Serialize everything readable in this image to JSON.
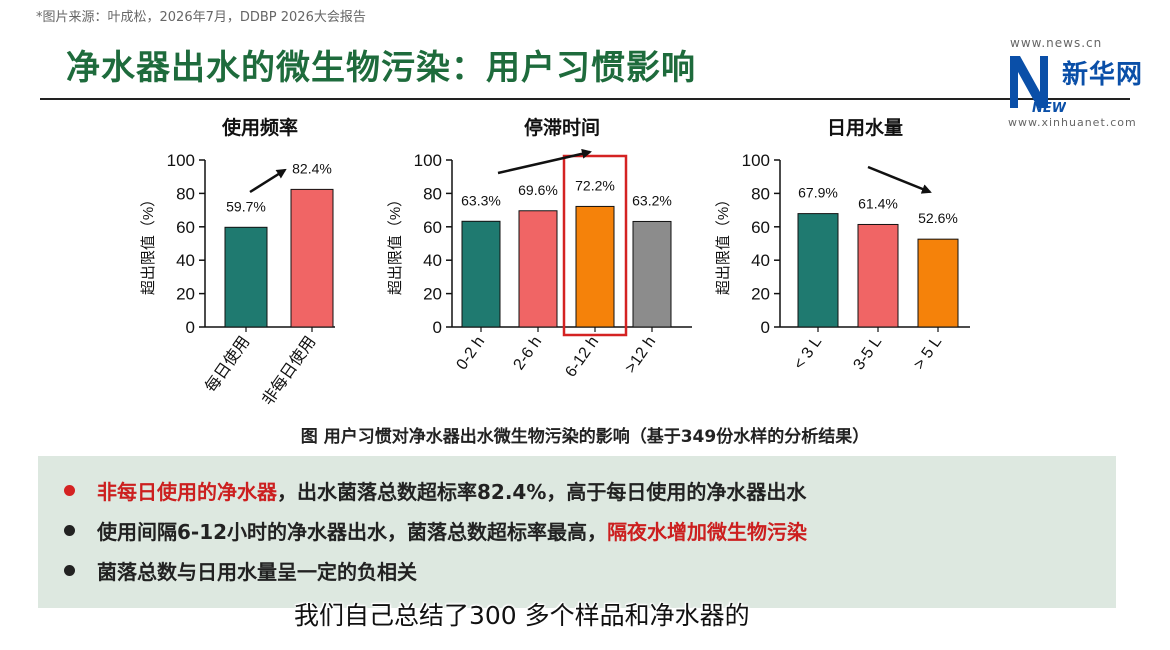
{
  "source": "*图片来源：叶成松，2026年7月，DDBP 2026大会报告",
  "title": "净水器出水的微生物污染：用户习惯影响",
  "logo": {
    "url_top": "www.news.cn",
    "name": "新华网",
    "letters": "NEWS",
    "url_bottom": "www.xinhuanet.com"
  },
  "caption": "图 用户习惯对净水器出水微生物污染的影响（基于349份水样的分析结果）",
  "chart_data": [
    {
      "type": "bar",
      "title": "使用频率",
      "ylabel": "超出限值（%）",
      "ylim": [
        0,
        100
      ],
      "yticks": [
        0,
        20,
        40,
        60,
        80,
        100
      ],
      "categories": [
        "每日使用",
        "非每日使用"
      ],
      "values": [
        59.7,
        82.4
      ],
      "labels": [
        "59.7%",
        "82.4%"
      ],
      "colors": [
        "#1f7a70",
        "#f06565"
      ],
      "trend_arrow": "up",
      "highlight_index": null
    },
    {
      "type": "bar",
      "title": "停滞时间",
      "ylabel": "超出限值（%）",
      "ylim": [
        0,
        100
      ],
      "yticks": [
        0,
        20,
        40,
        60,
        80,
        100
      ],
      "categories": [
        "0-2 h",
        "2-6 h",
        "6-12 h",
        ">12 h"
      ],
      "values": [
        63.3,
        69.6,
        72.2,
        63.2
      ],
      "labels": [
        "63.3%",
        "69.6%",
        "72.2%",
        "63.2%"
      ],
      "colors": [
        "#1f7a70",
        "#f06565",
        "#f5820a",
        "#8c8c8c"
      ],
      "trend_arrow": "up",
      "highlight_index": 2
    },
    {
      "type": "bar",
      "title": "日用水量",
      "ylabel": "超出限值（%）",
      "ylim": [
        0,
        100
      ],
      "yticks": [
        0,
        20,
        40,
        60,
        80,
        100
      ],
      "categories": [
        "< 3 L",
        "3-5 L",
        "> 5 L"
      ],
      "values": [
        67.9,
        61.4,
        52.6
      ],
      "labels": [
        "67.9%",
        "61.4%",
        "52.6%"
      ],
      "colors": [
        "#1f7a70",
        "#f06565",
        "#f5820a"
      ],
      "trend_arrow": "down",
      "highlight_index": null
    }
  ],
  "summary": {
    "b1_red": "非每日使用的净水器",
    "b1_rest": "，出水菌落总数超标率82.4%，高于每日使用的净水器出水",
    "b2_start": "使用间隔6-12小时的净水器出水，菌落总数超标率最高，",
    "b2_red": "隔夜水增加微生物污染",
    "b3": "菌落总数与日用水量呈一定的负相关"
  },
  "subtitle": "我们自己总结了300 多个样品和净水器的"
}
